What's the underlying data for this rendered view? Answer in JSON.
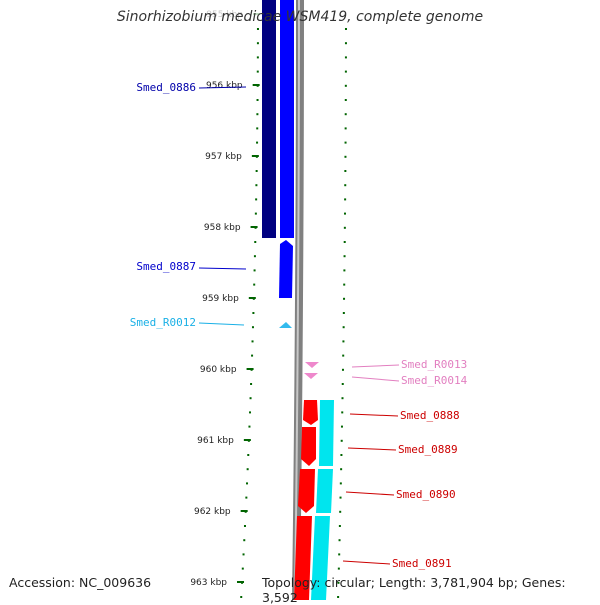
{
  "title": "Sinorhizobium medicae WSM419, complete genome",
  "accession": "Accession: NC_009636",
  "topology": "Topology: circular; Length: 3,781,904 bp; Genes: 3,592",
  "ruler_ticks": [
    {
      "kb": 955,
      "label": "955 kbp",
      "faded": true
    },
    {
      "kb": 956,
      "label": "956 kbp"
    },
    {
      "kb": 957,
      "label": "957 kbp"
    },
    {
      "kb": 958,
      "label": "958 kbp"
    },
    {
      "kb": 959,
      "label": "959 kbp"
    },
    {
      "kb": 960,
      "label": "960 kbp"
    },
    {
      "kb": 961,
      "label": "961 kbp"
    },
    {
      "kb": 962,
      "label": "962 kbp"
    },
    {
      "kb": 963,
      "label": "963 kbp"
    }
  ],
  "genes": [
    {
      "name": "Smed_0886",
      "color": "#0000aa",
      "side": "left"
    },
    {
      "name": "Smed_0887",
      "color": "#0000cc",
      "side": "left"
    },
    {
      "name": "Smed_R0012",
      "color": "#1ab0e6",
      "side": "left"
    },
    {
      "name": "Smed_R0013",
      "color": "#e27fc0",
      "side": "right"
    },
    {
      "name": "Smed_R0014",
      "color": "#e27fc0",
      "side": "right"
    },
    {
      "name": "Smed_0888",
      "color": "#cc0000",
      "side": "right"
    },
    {
      "name": "Smed_0889",
      "color": "#cc0000",
      "side": "right"
    },
    {
      "name": "Smed_0890",
      "color": "#cc0000",
      "side": "right"
    },
    {
      "name": "Smed_0891",
      "color": "#cc0000",
      "side": "right"
    }
  ],
  "colors": {
    "cds_dark_blue": "#000080",
    "cds_blue": "#0000ff",
    "trna_light_blue": "#33bbee",
    "rrna_pink": "#ee88cc",
    "cds_red": "#ff0000",
    "cds_cyan": "#00e5ee",
    "backbone": "#808080",
    "ruler_green": "#006400"
  }
}
